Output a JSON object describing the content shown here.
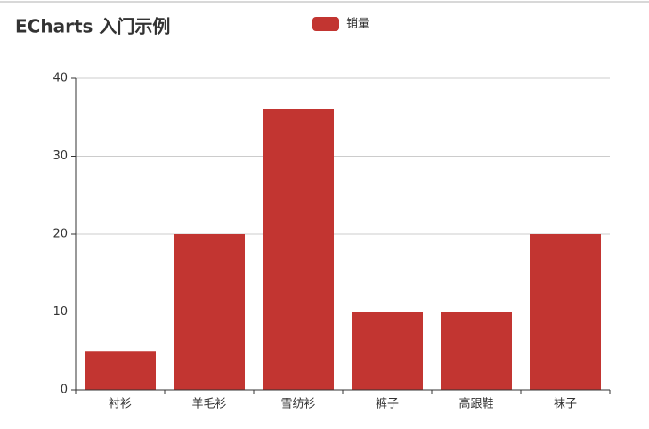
{
  "chart_data": {
    "type": "bar",
    "title": "ECharts 入门示例",
    "categories": [
      "衬衫",
      "羊毛衫",
      "雪纺衫",
      "裤子",
      "高跟鞋",
      "袜子"
    ],
    "series": [
      {
        "name": "销量",
        "color": "#c23531",
        "values": [
          5,
          20,
          36,
          10,
          10,
          20
        ]
      }
    ],
    "ylim": [
      0,
      40
    ],
    "yticks": [
      0,
      10,
      20,
      30,
      40
    ],
    "grid": true
  }
}
